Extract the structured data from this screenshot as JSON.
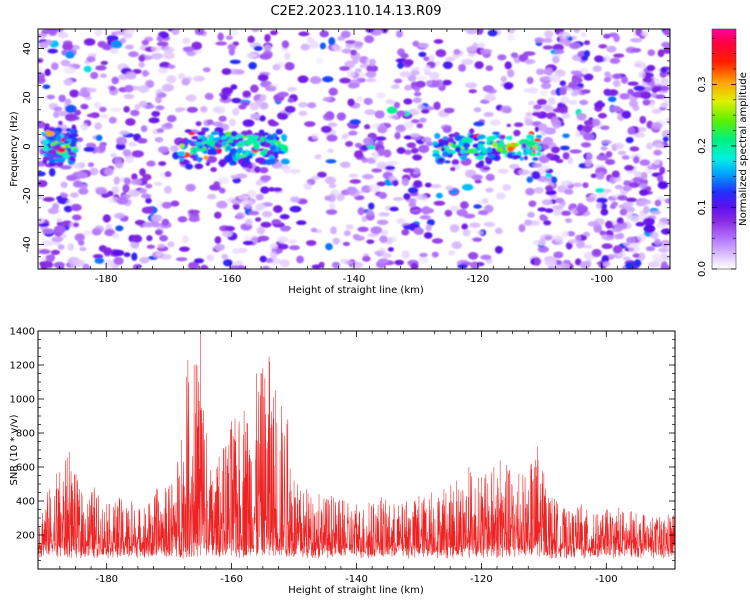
{
  "title": "C2E2.2023.110.14.13.R09",
  "colors": {
    "snr_line": "#ee2222",
    "spectrogram_bg": "#ffffff"
  },
  "chart_data": [
    {
      "type": "heatmap",
      "xlabel": "Height of straight line (km)",
      "ylabel": "Frequency (Hz)",
      "xlim": [
        -191,
        -89
      ],
      "ylim": [
        -50,
        48
      ],
      "x_ticks": [
        -180,
        -160,
        -140,
        -120,
        -100
      ],
      "y_ticks": [
        -40,
        -20,
        0,
        20,
        40
      ],
      "colorbar": {
        "label": "Normalized spectral amplitude",
        "range": [
          0.0,
          0.39
        ],
        "ticks": [
          "0.0",
          "0.1",
          "0.2",
          "0.3"
        ],
        "tick_values": [
          0.0,
          0.1,
          0.2,
          0.3
        ],
        "colormap": "rainbow: white-lavender → violet → blue → cyan → green → yellow → red → magenta"
      },
      "features": {
        "signal_band_center_hz": 0,
        "signal_band_halfwidth_hz": 8,
        "strong_height_ranges_km": [
          [
            -190,
            -185
          ],
          [
            -168,
            -151
          ],
          [
            -127,
            -110
          ]
        ],
        "weak_height_ranges_km": [
          [
            -170,
            -162
          ],
          [
            -151,
            -142
          ],
          [
            -127,
            -121
          ],
          [
            -118,
            -112
          ]
        ],
        "peak_amplitude": 0.38
      }
    },
    {
      "type": "line",
      "xlabel": "Height of straight line (km)",
      "ylabel": "SNR (10 * v/v)",
      "xlim": [
        -191,
        -89
      ],
      "ylim": [
        0,
        1400
      ],
      "x_ticks": [
        -180,
        -160,
        -140,
        -120,
        -100
      ],
      "y_ticks": [
        200,
        400,
        600,
        800,
        1000,
        1200,
        1400
      ],
      "series": [
        {
          "x": [
            -191,
            -188,
            -186,
            -184,
            -182,
            -180,
            -178,
            -176,
            -174,
            -172,
            -170,
            -168,
            -167,
            -166,
            -165,
            -164,
            -163,
            -162,
            -160,
            -158,
            -156,
            -155,
            -154,
            -153,
            -152,
            -151,
            -150,
            -148,
            -146,
            -144,
            -142,
            -140,
            -138,
            -136,
            -134,
            -132,
            -130,
            -128,
            -126,
            -124,
            -122,
            -120,
            -118,
            -117,
            -116,
            -114,
            -112,
            -111,
            -110,
            -108,
            -106,
            -104,
            -102,
            -100,
            -98,
            -96,
            -94,
            -92,
            -89
          ],
          "y": [
            360,
            560,
            690,
            450,
            480,
            380,
            420,
            400,
            360,
            470,
            490,
            760,
            1230,
            1200,
            1400,
            800,
            520,
            660,
            870,
            930,
            1150,
            1180,
            1250,
            1050,
            960,
            880,
            520,
            470,
            440,
            430,
            400,
            380,
            390,
            420,
            380,
            400,
            430,
            450,
            470,
            520,
            600,
            540,
            600,
            640,
            610,
            560,
            620,
            720,
            560,
            400,
            340,
            380,
            320,
            350,
            360,
            340,
            320,
            300,
            360
          ]
        }
      ]
    }
  ]
}
